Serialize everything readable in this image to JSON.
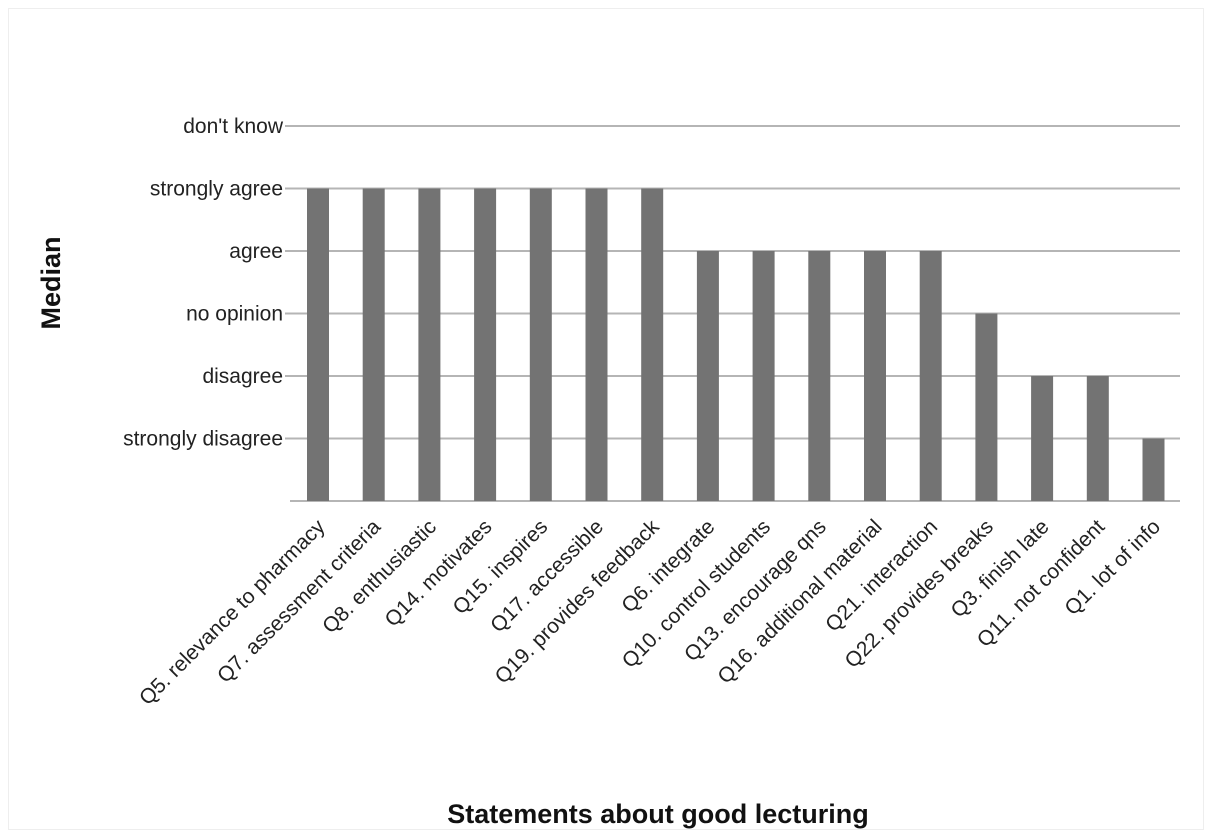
{
  "chart_data": {
    "type": "bar",
    "xlabel": "Statements about good lecturing",
    "ylabel": "Median",
    "y_levels": [
      "strongly  disagree",
      "disagree",
      "no opinion",
      "agree",
      "strongly agree",
      "don't know"
    ],
    "ylim": [
      0,
      6
    ],
    "categories": [
      "Q5. relevance to pharmacy",
      "Q7. assessment criteria",
      "Q8. enthusiastic",
      "Q14. motivates",
      "Q15. inspires",
      "Q17. accessible",
      "Q19. provides feedback",
      "Q6. integrate",
      "Q10. control students",
      "Q13. encourage qns",
      "Q16. additional material",
      "Q21. interaction",
      "Q22. provides breaks",
      "Q3. finish late",
      "Q11. not confident",
      "Q1. lot of info"
    ],
    "values": [
      5,
      5,
      5,
      5,
      5,
      5,
      5,
      4,
      4,
      4,
      4,
      4,
      3,
      2,
      2,
      1
    ],
    "value_labels": [
      "strongly agree",
      "strongly agree",
      "strongly agree",
      "strongly agree",
      "strongly agree",
      "strongly agree",
      "strongly agree",
      "agree",
      "agree",
      "agree",
      "agree",
      "agree",
      "no opinion",
      "disagree",
      "disagree",
      "strongly  disagree"
    ],
    "grid": true,
    "legend": "none",
    "colors": {
      "bar": "#737373",
      "grid": "#b5b5b5",
      "text": "#222222"
    }
  }
}
